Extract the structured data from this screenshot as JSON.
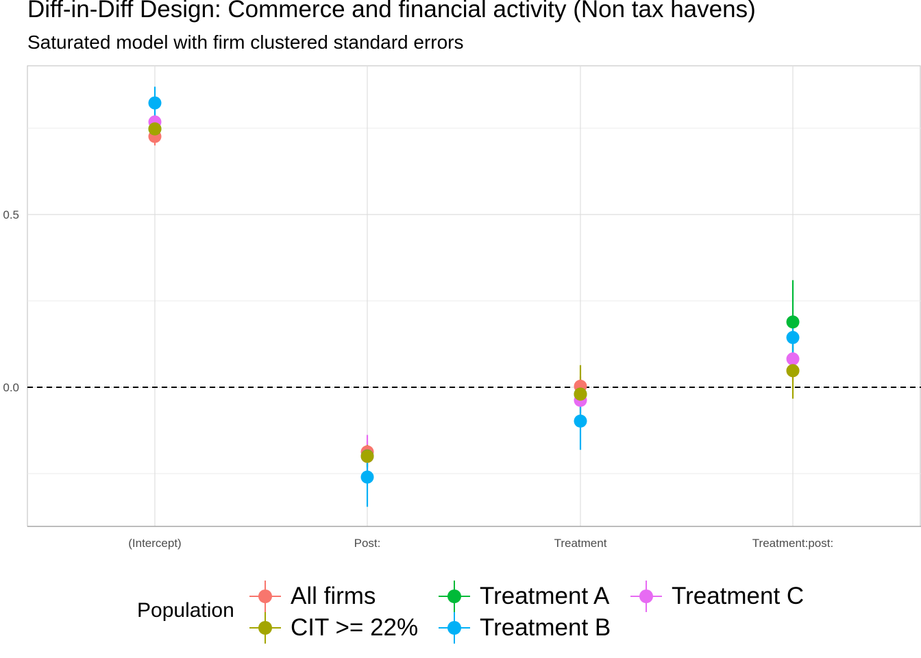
{
  "title": "Diff-in-Diff Design: Commerce and financial activity (Non tax havens)",
  "subtitle": "Saturated model with firm clustered standard errors",
  "chart_data": {
    "type": "scatter",
    "subtype": "coefficient plot with error bars",
    "title": "Diff-in-Diff Design: Commerce and financial activity (Non tax havens)",
    "subtitle": "Saturated model with firm clustered standard errors",
    "xlabel": "",
    "ylabel": "",
    "categories": [
      "(Intercept)",
      "Post:",
      "Treatment",
      "Treatment:post:"
    ],
    "y_ticks": [
      0.0,
      0.5
    ],
    "y_tick_labels": [
      "0.0",
      "0.5"
    ],
    "ylim": [
      -0.405,
      0.935
    ],
    "reference_line": {
      "y": 0,
      "style": "dashed"
    },
    "grid": true,
    "legend": {
      "title": "Population",
      "position": "bottom"
    },
    "series": [
      {
        "name": "All firms",
        "color": "#F8766D",
        "estimates": [
          0.726,
          -0.187,
          0.003,
          0.048
        ],
        "ci_low": [
          0.7,
          -0.218,
          -0.025,
          0.015
        ],
        "ci_high": [
          0.752,
          -0.156,
          0.031,
          0.081
        ]
      },
      {
        "name": "Treatment A",
        "color": "#00BA38",
        "estimates": [
          0.748,
          -0.199,
          -0.02,
          0.189
        ],
        "ci_low": [
          0.722,
          -0.23,
          -0.05,
          0.068
        ],
        "ci_high": [
          0.774,
          -0.168,
          0.01,
          0.31
        ]
      },
      {
        "name": "Treatment C",
        "color": "#E76BF3",
        "estimates": [
          0.768,
          -0.2,
          -0.038,
          0.082
        ],
        "ci_low": [
          0.74,
          -0.262,
          -0.075,
          0.04
        ],
        "ci_high": [
          0.796,
          -0.138,
          -0.001,
          0.124
        ]
      },
      {
        "name": "CIT >= 22%",
        "color": "#A3A500",
        "estimates": [
          0.748,
          -0.2,
          -0.02,
          0.048
        ],
        "ci_low": [
          0.722,
          -0.233,
          -0.085,
          -0.033
        ],
        "ci_high": [
          0.774,
          -0.167,
          0.064,
          0.129
        ]
      },
      {
        "name": "Treatment B",
        "color": "#00B0F6",
        "estimates": [
          0.823,
          -0.26,
          -0.098,
          0.144
        ],
        "ci_low": [
          0.776,
          -0.346,
          -0.181,
          0.1
        ],
        "ci_high": [
          0.87,
          -0.174,
          -0.015,
          0.188
        ]
      }
    ]
  },
  "legend": {
    "title": "Population",
    "items": [
      {
        "label": "All firms",
        "color": "#F8766D"
      },
      {
        "label": "CIT >= 22%",
        "color": "#A3A500"
      },
      {
        "label": "Treatment A",
        "color": "#00BA38"
      },
      {
        "label": "Treatment B",
        "color": "#00B0F6"
      },
      {
        "label": "Treatment C",
        "color": "#E76BF3"
      }
    ]
  }
}
